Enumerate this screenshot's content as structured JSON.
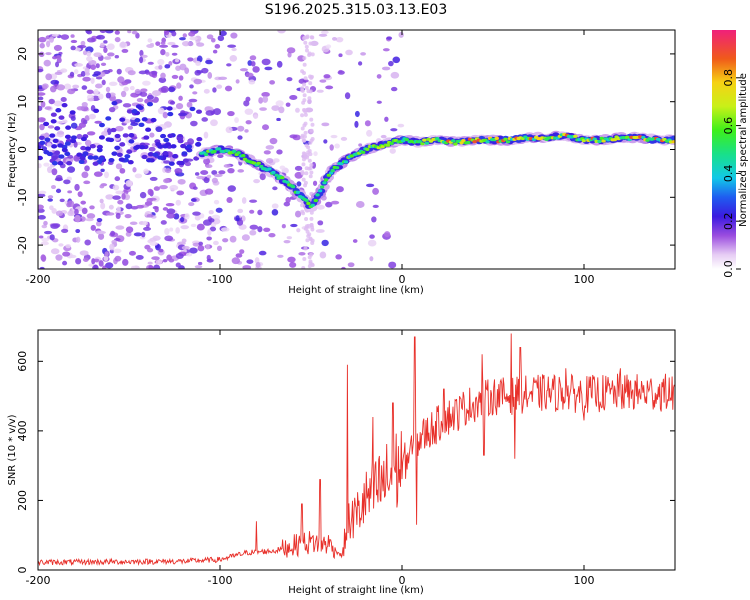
{
  "title": "S196.2025.315.03.13.E03",
  "chart_data": [
    {
      "type": "heatmap",
      "title": "S196.2025.315.03.13.E03",
      "xlabel": "Height of straight line (km)",
      "ylabel": "Frequency (Hz)",
      "xlim": [
        -200,
        150
      ],
      "ylim": [
        -25,
        25
      ],
      "xticks": [
        -200,
        -100,
        0,
        100
      ],
      "yticks": [
        -20,
        -10,
        0,
        10,
        20
      ],
      "colorbar": {
        "label": "Normalized spectral amplitude",
        "range": [
          0,
          1
        ],
        "ticks": [
          0.0,
          0.2,
          0.4,
          0.6,
          0.8
        ],
        "tick_labels": [
          "0.0",
          "0.2",
          "0.4",
          "0.6",
          "0.8"
        ]
      },
      "ridge": {
        "x": [
          -110,
          -100,
          -90,
          -80,
          -70,
          -60,
          -55,
          -50,
          -45,
          -40,
          -30,
          -20,
          -10,
          0,
          10,
          20,
          30,
          40,
          50,
          60,
          70,
          80,
          90,
          100,
          110,
          120,
          130,
          140,
          150
        ],
        "y": [
          -1,
          0,
          -1,
          -3,
          -5,
          -8,
          -10,
          -12,
          -9,
          -5,
          -2,
          0,
          1,
          2,
          1.5,
          2,
          1.5,
          2,
          2,
          2,
          2.5,
          2.5,
          3,
          2,
          2,
          2.5,
          2.5,
          2,
          2
        ]
      }
    },
    {
      "type": "line",
      "xlabel": "Height of straight line (km)",
      "ylabel": "SNR (10 * v/v)",
      "xlim": [
        -200,
        150
      ],
      "ylim": [
        0,
        690
      ],
      "xticks": [
        -200,
        -100,
        0,
        100
      ],
      "yticks": [
        0,
        200,
        400,
        600
      ],
      "color": "#e8302a",
      "envelope_x": [
        -200,
        -120,
        -100,
        -85,
        -70,
        -60,
        -50,
        -40,
        -33,
        -30,
        -25,
        -20,
        -10,
        0,
        10,
        20,
        25,
        30,
        35,
        40,
        45,
        50,
        60,
        70,
        80,
        100,
        120,
        150
      ],
      "envelope_y": [
        22,
        25,
        30,
        50,
        55,
        70,
        80,
        75,
        40,
        130,
        160,
        200,
        250,
        300,
        380,
        420,
        440,
        450,
        470,
        480,
        490,
        500,
        500,
        505,
        510,
        505,
        510,
        510
      ],
      "spikes": [
        [
          -80,
          140
        ],
        [
          -55,
          190
        ],
        [
          -45,
          260
        ],
        [
          -30,
          590
        ],
        [
          -16,
          440
        ],
        [
          -5,
          480
        ],
        [
          7,
          670
        ],
        [
          8,
          130
        ],
        [
          23,
          520
        ],
        [
          44,
          620
        ],
        [
          45,
          330
        ],
        [
          60,
          680
        ],
        [
          62,
          320
        ],
        [
          65,
          640
        ],
        [
          90,
          580
        ],
        [
          100,
          430
        ],
        [
          120,
          580
        ]
      ]
    }
  ]
}
